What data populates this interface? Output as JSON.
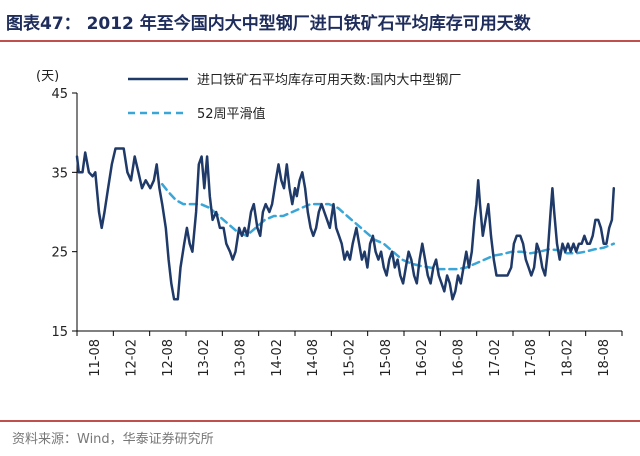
{
  "title": "图表47：  2012 年至今国内大中型钢厂进口铁矿石平均库存可用天数",
  "source": "资料来源：Wind，华泰证券研究所",
  "colors": {
    "series1": "#1f3a68",
    "series2": "#3aa6d8",
    "accent_rule": "#c0504d"
  },
  "chart_data": {
    "type": "line",
    "ylabel": "(天)",
    "ylim": [
      15,
      45
    ],
    "yticks": [
      "45",
      "35",
      "25",
      "15"
    ],
    "xticks": [
      "11-08",
      "12-02",
      "12-08",
      "13-02",
      "13-08",
      "14-02",
      "14-08",
      "15-02",
      "15-08",
      "16-02",
      "16-08",
      "17-02",
      "17-08",
      "18-02",
      "18-08"
    ],
    "legend_position": "top-right",
    "series": [
      {
        "name": "进口铁矿石平均库存可用天数:国内大中型钢厂",
        "style": "solid",
        "points": [
          [
            0,
            37
          ],
          [
            0.2,
            35
          ],
          [
            0.6,
            35
          ],
          [
            0.9,
            37.5
          ],
          [
            1.3,
            35
          ],
          [
            1.7,
            34.5
          ],
          [
            2,
            35
          ],
          [
            2.4,
            30
          ],
          [
            2.7,
            28
          ],
          [
            3,
            30
          ],
          [
            3.4,
            33
          ],
          [
            3.8,
            36
          ],
          [
            4.2,
            38
          ],
          [
            4.7,
            38
          ],
          [
            5.1,
            38
          ],
          [
            5.5,
            35
          ],
          [
            5.9,
            34
          ],
          [
            6.3,
            37
          ],
          [
            6.7,
            35
          ],
          [
            7.1,
            33
          ],
          [
            7.5,
            34
          ],
          [
            8,
            33
          ],
          [
            8.4,
            34
          ],
          [
            8.7,
            36
          ],
          [
            9,
            33
          ],
          [
            9.3,
            31
          ],
          [
            9.7,
            28
          ],
          [
            10,
            24
          ],
          [
            10.3,
            21
          ],
          [
            10.6,
            19
          ],
          [
            11,
            19
          ],
          [
            11.3,
            23
          ],
          [
            11.7,
            26
          ],
          [
            12,
            28
          ],
          [
            12.3,
            26
          ],
          [
            12.6,
            25
          ],
          [
            13,
            30
          ],
          [
            13.3,
            36
          ],
          [
            13.6,
            37
          ],
          [
            13.9,
            33
          ],
          [
            14.2,
            37
          ],
          [
            14.5,
            32
          ],
          [
            14.8,
            29
          ],
          [
            15.2,
            30
          ],
          [
            15.6,
            28
          ],
          [
            16,
            28
          ],
          [
            16.3,
            26
          ],
          [
            16.7,
            25
          ],
          [
            17,
            24
          ],
          [
            17.3,
            25
          ],
          [
            17.7,
            28
          ],
          [
            18,
            27
          ],
          [
            18.3,
            28
          ],
          [
            18.6,
            27
          ],
          [
            19,
            30
          ],
          [
            19.3,
            31
          ],
          [
            19.7,
            28
          ],
          [
            20,
            27
          ],
          [
            20.3,
            30
          ],
          [
            20.6,
            31
          ],
          [
            21,
            30
          ],
          [
            21.3,
            31
          ],
          [
            21.7,
            34
          ],
          [
            22,
            36
          ],
          [
            22.3,
            34
          ],
          [
            22.6,
            33
          ],
          [
            22.9,
            36
          ],
          [
            23.2,
            33
          ],
          [
            23.5,
            31
          ],
          [
            23.8,
            33
          ],
          [
            24,
            32
          ],
          [
            24.3,
            34
          ],
          [
            24.6,
            35
          ],
          [
            24.9,
            33
          ],
          [
            25.2,
            30
          ],
          [
            25.5,
            28
          ],
          [
            25.8,
            27
          ],
          [
            26.1,
            28
          ],
          [
            26.4,
            30
          ],
          [
            26.7,
            31
          ],
          [
            27,
            30
          ],
          [
            27.3,
            29
          ],
          [
            27.6,
            28
          ],
          [
            28,
            31
          ],
          [
            28.3,
            28
          ],
          [
            28.6,
            27
          ],
          [
            28.9,
            26
          ],
          [
            29.2,
            24
          ],
          [
            29.5,
            25
          ],
          [
            29.8,
            24
          ],
          [
            30.1,
            26
          ],
          [
            30.5,
            28
          ],
          [
            30.8,
            26
          ],
          [
            31.1,
            24
          ],
          [
            31.4,
            25
          ],
          [
            31.7,
            23
          ],
          [
            32,
            26
          ],
          [
            32.3,
            27
          ],
          [
            32.6,
            25
          ],
          [
            32.9,
            24
          ],
          [
            33.2,
            25
          ],
          [
            33.5,
            23
          ],
          [
            33.8,
            22
          ],
          [
            34.1,
            24
          ],
          [
            34.4,
            25
          ],
          [
            34.7,
            23
          ],
          [
            35,
            24
          ],
          [
            35.3,
            22
          ],
          [
            35.6,
            21
          ],
          [
            35.9,
            23
          ],
          [
            36.2,
            25
          ],
          [
            36.5,
            24
          ],
          [
            36.8,
            22
          ],
          [
            37.1,
            21
          ],
          [
            37.4,
            24
          ],
          [
            37.7,
            26
          ],
          [
            38,
            24
          ],
          [
            38.3,
            22
          ],
          [
            38.6,
            21
          ],
          [
            38.9,
            23
          ],
          [
            39.2,
            24
          ],
          [
            39.5,
            22
          ],
          [
            39.8,
            21
          ],
          [
            40.1,
            20
          ],
          [
            40.4,
            22
          ],
          [
            40.7,
            21
          ],
          [
            41,
            19
          ],
          [
            41.3,
            20
          ],
          [
            41.6,
            22
          ],
          [
            41.9,
            21
          ],
          [
            42.2,
            23
          ],
          [
            42.5,
            25
          ],
          [
            42.8,
            23
          ],
          [
            43.1,
            25
          ],
          [
            43.4,
            29
          ],
          [
            43.6,
            31
          ],
          [
            43.8,
            34
          ],
          [
            44,
            31
          ],
          [
            44.3,
            27
          ],
          [
            44.6,
            29
          ],
          [
            44.9,
            31
          ],
          [
            45.2,
            27
          ],
          [
            45.5,
            24
          ],
          [
            45.8,
            22
          ],
          [
            46.2,
            22
          ],
          [
            46.6,
            22
          ],
          [
            47,
            22
          ],
          [
            47.4,
            23
          ],
          [
            47.7,
            26
          ],
          [
            48,
            27
          ],
          [
            48.4,
            27
          ],
          [
            48.7,
            26
          ],
          [
            49,
            24
          ],
          [
            49.3,
            23
          ],
          [
            49.6,
            22
          ],
          [
            49.9,
            23
          ],
          [
            50.2,
            26
          ],
          [
            50.5,
            25
          ],
          [
            50.8,
            23
          ],
          [
            51.1,
            22
          ],
          [
            51.4,
            25
          ],
          [
            51.7,
            30
          ],
          [
            51.9,
            33
          ],
          [
            52.1,
            30
          ],
          [
            52.4,
            26
          ],
          [
            52.7,
            24
          ],
          [
            53,
            26
          ],
          [
            53.3,
            25
          ],
          [
            53.6,
            26
          ],
          [
            53.9,
            25
          ],
          [
            54.2,
            26
          ],
          [
            54.5,
            25
          ],
          [
            54.8,
            26
          ],
          [
            55.1,
            26
          ],
          [
            55.4,
            27
          ],
          [
            55.7,
            26
          ],
          [
            56,
            26
          ],
          [
            56.3,
            27
          ],
          [
            56.6,
            29
          ],
          [
            56.9,
            29
          ],
          [
            57.2,
            28
          ],
          [
            57.5,
            26
          ],
          [
            57.8,
            26
          ],
          [
            58.1,
            28
          ],
          [
            58.4,
            29
          ],
          [
            58.6,
            33
          ]
        ]
      },
      {
        "name": "52周平滑值",
        "style": "dashed",
        "points": [
          [
            9.3,
            33.5
          ],
          [
            10,
            32.5
          ],
          [
            10.8,
            31.5
          ],
          [
            11.6,
            31
          ],
          [
            12.5,
            31
          ],
          [
            13.5,
            31
          ],
          [
            14.5,
            30.5
          ],
          [
            15.5,
            29.5
          ],
          [
            16.5,
            28.5
          ],
          [
            17.5,
            27.5
          ],
          [
            18.5,
            27
          ],
          [
            19.5,
            28
          ],
          [
            20.5,
            29
          ],
          [
            21.5,
            29.5
          ],
          [
            22.5,
            29.5
          ],
          [
            23.5,
            30
          ],
          [
            24.5,
            30.5
          ],
          [
            25.5,
            31
          ],
          [
            26.5,
            31
          ],
          [
            27.5,
            31
          ],
          [
            28.5,
            30.5
          ],
          [
            29.5,
            29.5
          ],
          [
            30.5,
            28.5
          ],
          [
            31.5,
            27.5
          ],
          [
            32.5,
            26.5
          ],
          [
            33.5,
            26
          ],
          [
            34.5,
            25
          ],
          [
            35.5,
            24
          ],
          [
            36.5,
            23.5
          ],
          [
            37.5,
            23.2
          ],
          [
            38.5,
            23
          ],
          [
            39.5,
            22.8
          ],
          [
            40.5,
            22.8
          ],
          [
            41.5,
            22.8
          ],
          [
            42.5,
            23
          ],
          [
            43.5,
            23.5
          ],
          [
            44.5,
            24
          ],
          [
            45.5,
            24.5
          ],
          [
            46.5,
            24.7
          ],
          [
            47.5,
            25
          ],
          [
            48.5,
            25
          ],
          [
            49.5,
            24.8
          ],
          [
            50.5,
            25
          ],
          [
            51.5,
            25.3
          ],
          [
            52.5,
            25.2
          ],
          [
            53.5,
            24.8
          ],
          [
            54.5,
            24.8
          ],
          [
            55.5,
            25
          ],
          [
            56.5,
            25.3
          ],
          [
            57.5,
            25.5
          ],
          [
            58.6,
            26
          ]
        ]
      }
    ]
  }
}
